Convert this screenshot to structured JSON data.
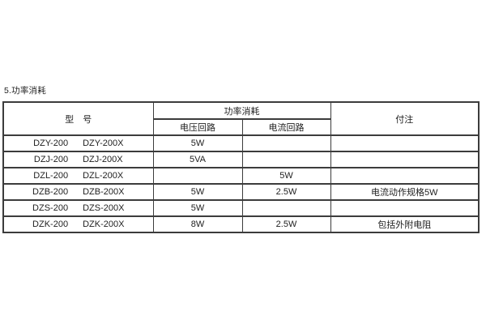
{
  "page": {
    "section_title": "5.功率消耗"
  },
  "table": {
    "header": {
      "model": "型　号",
      "power_group": "功率消耗",
      "voltage_circuit": "电压回路",
      "current_circuit": "电流回路",
      "notes": "付注"
    },
    "rows": [
      {
        "model_a": "DZY-200",
        "model_b": "DZY-200X",
        "voltage": "5W",
        "current": "",
        "note": ""
      },
      {
        "model_a": "DZJ-200",
        "model_b": "DZJ-200X",
        "voltage": "5VA",
        "current": "",
        "note": ""
      },
      {
        "model_a": "DZL-200",
        "model_b": "DZL-200X",
        "voltage": "",
        "current": "5W",
        "note": ""
      },
      {
        "model_a": "DZB-200",
        "model_b": "DZB-200X",
        "voltage": "5W",
        "current": "2.5W",
        "note": "电流动作规格5W"
      },
      {
        "model_a": "DZS-200",
        "model_b": "DZS-200X",
        "voltage": "5W",
        "current": "",
        "note": ""
      },
      {
        "model_a": "DZK-200",
        "model_b": "DZK-200X",
        "voltage": "8W",
        "current": "2.5W",
        "note": "包括外附电阻"
      }
    ]
  }
}
